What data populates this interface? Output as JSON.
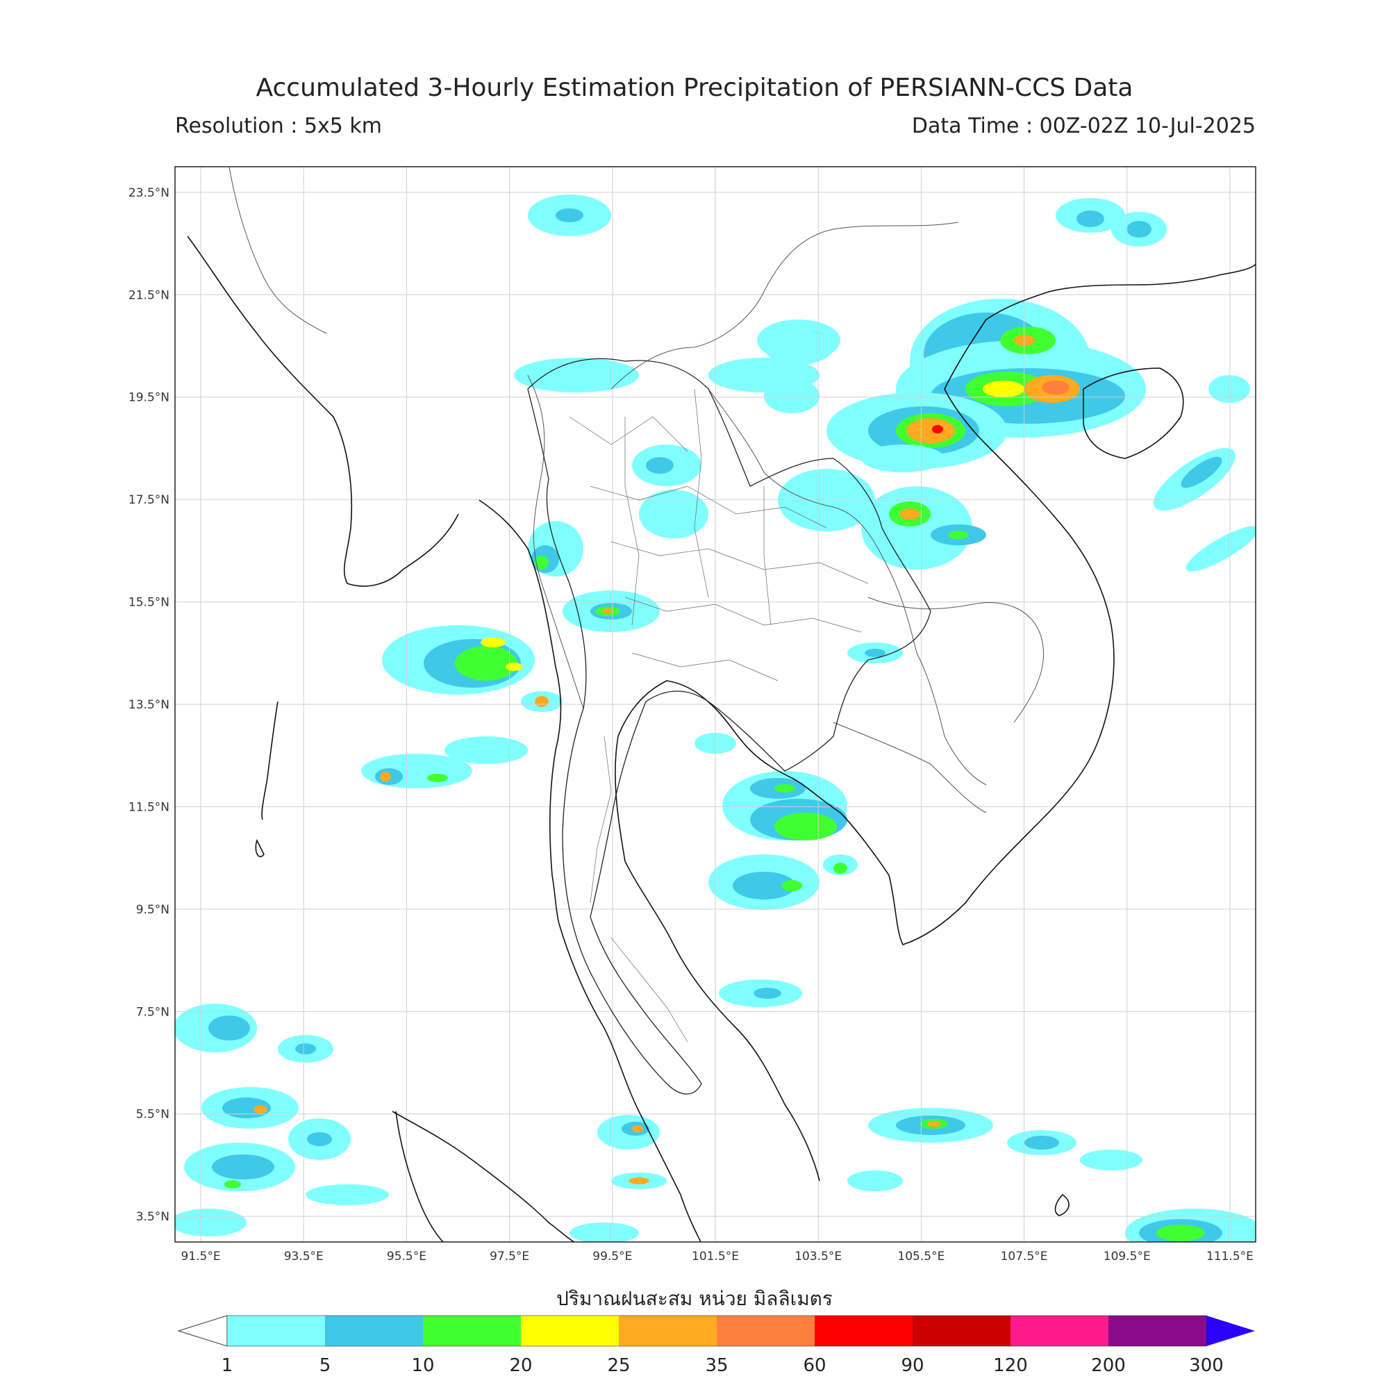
{
  "title": "Accumulated 3-Hourly Estimation Precipitation of PERSIANN-CCS Data",
  "resolution": "Resolution : 5x5 km",
  "data_time": "Data Time : 00Z-02Z 10-Jul-2025",
  "x_axis_label": "ปริมาณฝนสะสม หน่วย มิลลิเมตร",
  "map": {
    "lon_range": [
      91.0,
      112.0
    ],
    "lat_range": [
      3.0,
      24.0
    ],
    "lat_ticks": [
      "23.5°N",
      "21.5°N",
      "19.5°N",
      "17.5°N",
      "15.5°N",
      "13.5°N",
      "11.5°N",
      "9.5°N",
      "7.5°N",
      "5.5°N",
      "3.5°N"
    ],
    "lon_ticks": [
      "91.5°E",
      "93.5°E",
      "95.5°E",
      "97.5°E",
      "99.5°E",
      "101.5°E",
      "103.5°E",
      "105.5°E",
      "107.5°E",
      "109.5°E",
      "111.5°E"
    ]
  },
  "colorbar": {
    "labels": [
      "1",
      "5",
      "10",
      "20",
      "25",
      "35",
      "60",
      "90",
      "120",
      "200",
      "300"
    ],
    "colors": [
      "#80ffff",
      "#40c8e8",
      "#40ff30",
      "#ffff00",
      "#ffaa20",
      "#ff7f40",
      "#ff0000",
      "#cc0000",
      "#ff1a8c",
      "#8b0a8b"
    ],
    "under_color": "#ffffff",
    "over_color": "#2a00ff"
  }
}
